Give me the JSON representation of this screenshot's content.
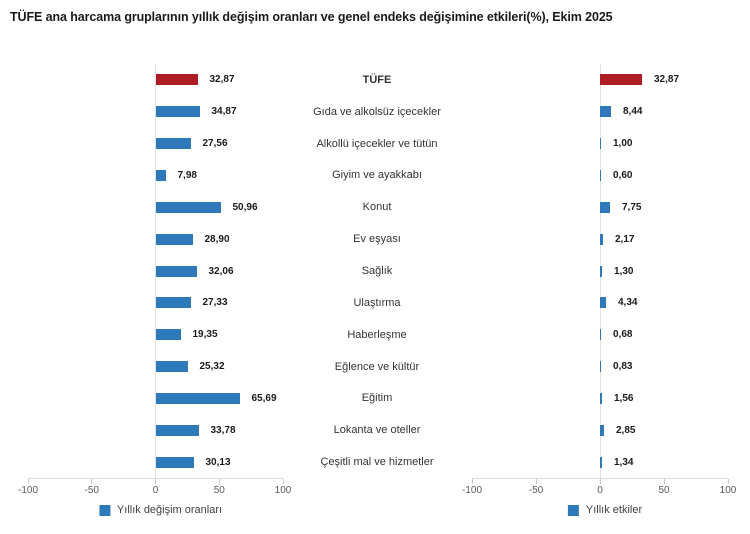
{
  "title": "TÜFE ana harcama gruplarının yıllık değişim oranları ve genel endeks değişimine etkileri(%), Ekim 2025",
  "colors": {
    "bar_blue": "#2e79b9",
    "bar_red": "#ae1c24",
    "axis_line": "#d9d9d9",
    "zero_line": "#e0e0e0",
    "tick_text": "#595959",
    "category_text": "#333333",
    "value_text": "#1a1a1a"
  },
  "chart_data": {
    "type": "bar",
    "orientation": "horizontal",
    "title": "TÜFE ana harcama gruplarının yıllık değişim oranları ve genel endeks değişimine etkileri(%), Ekim 2025",
    "categories": [
      "TÜFE",
      "Gıda ve alkolsüz içecekler",
      "Alkollü içecekler ve tütün",
      "Giyim ve ayakkabı",
      "Konut",
      "Ev eşyası",
      "Sağlık",
      "Ulaştırma",
      "Haberleşme",
      "Eğlence ve kültür",
      "Eğitim",
      "Lokanta ve oteller",
      "Çeşitli mal ve hizmetler"
    ],
    "highlight_category": "TÜFE",
    "series": [
      {
        "name": "Yıllık değişim oranları",
        "values": [
          32.87,
          34.87,
          27.56,
          7.98,
          50.96,
          28.9,
          32.06,
          27.33,
          19.35,
          25.32,
          65.69,
          33.78,
          30.13
        ],
        "labels": [
          "32,87",
          "34,87",
          "27,56",
          "7,98",
          "50,96",
          "28,90",
          "32,06",
          "27,33",
          "19,35",
          "25,32",
          "65,69",
          "33,78",
          "30,13"
        ]
      },
      {
        "name": "Yıllık etkiler",
        "values": [
          32.87,
          8.44,
          1.0,
          0.6,
          7.75,
          2.17,
          1.3,
          4.34,
          0.68,
          0.83,
          1.56,
          2.85,
          1.34
        ],
        "labels": [
          "32,87",
          "8,44",
          "1,00",
          "0,60",
          "7,75",
          "2,17",
          "1,30",
          "4,34",
          "0,68",
          "0,83",
          "1,56",
          "2,85",
          "1,34"
        ]
      }
    ],
    "xlim": [
      -100,
      100
    ],
    "x_ticks": [
      -100,
      -50,
      0,
      50,
      100
    ],
    "x_tick_labels": [
      "-100",
      "-50",
      "0",
      "50",
      "100"
    ],
    "legend_position": "bottom",
    "grid": "zero-line-only"
  }
}
